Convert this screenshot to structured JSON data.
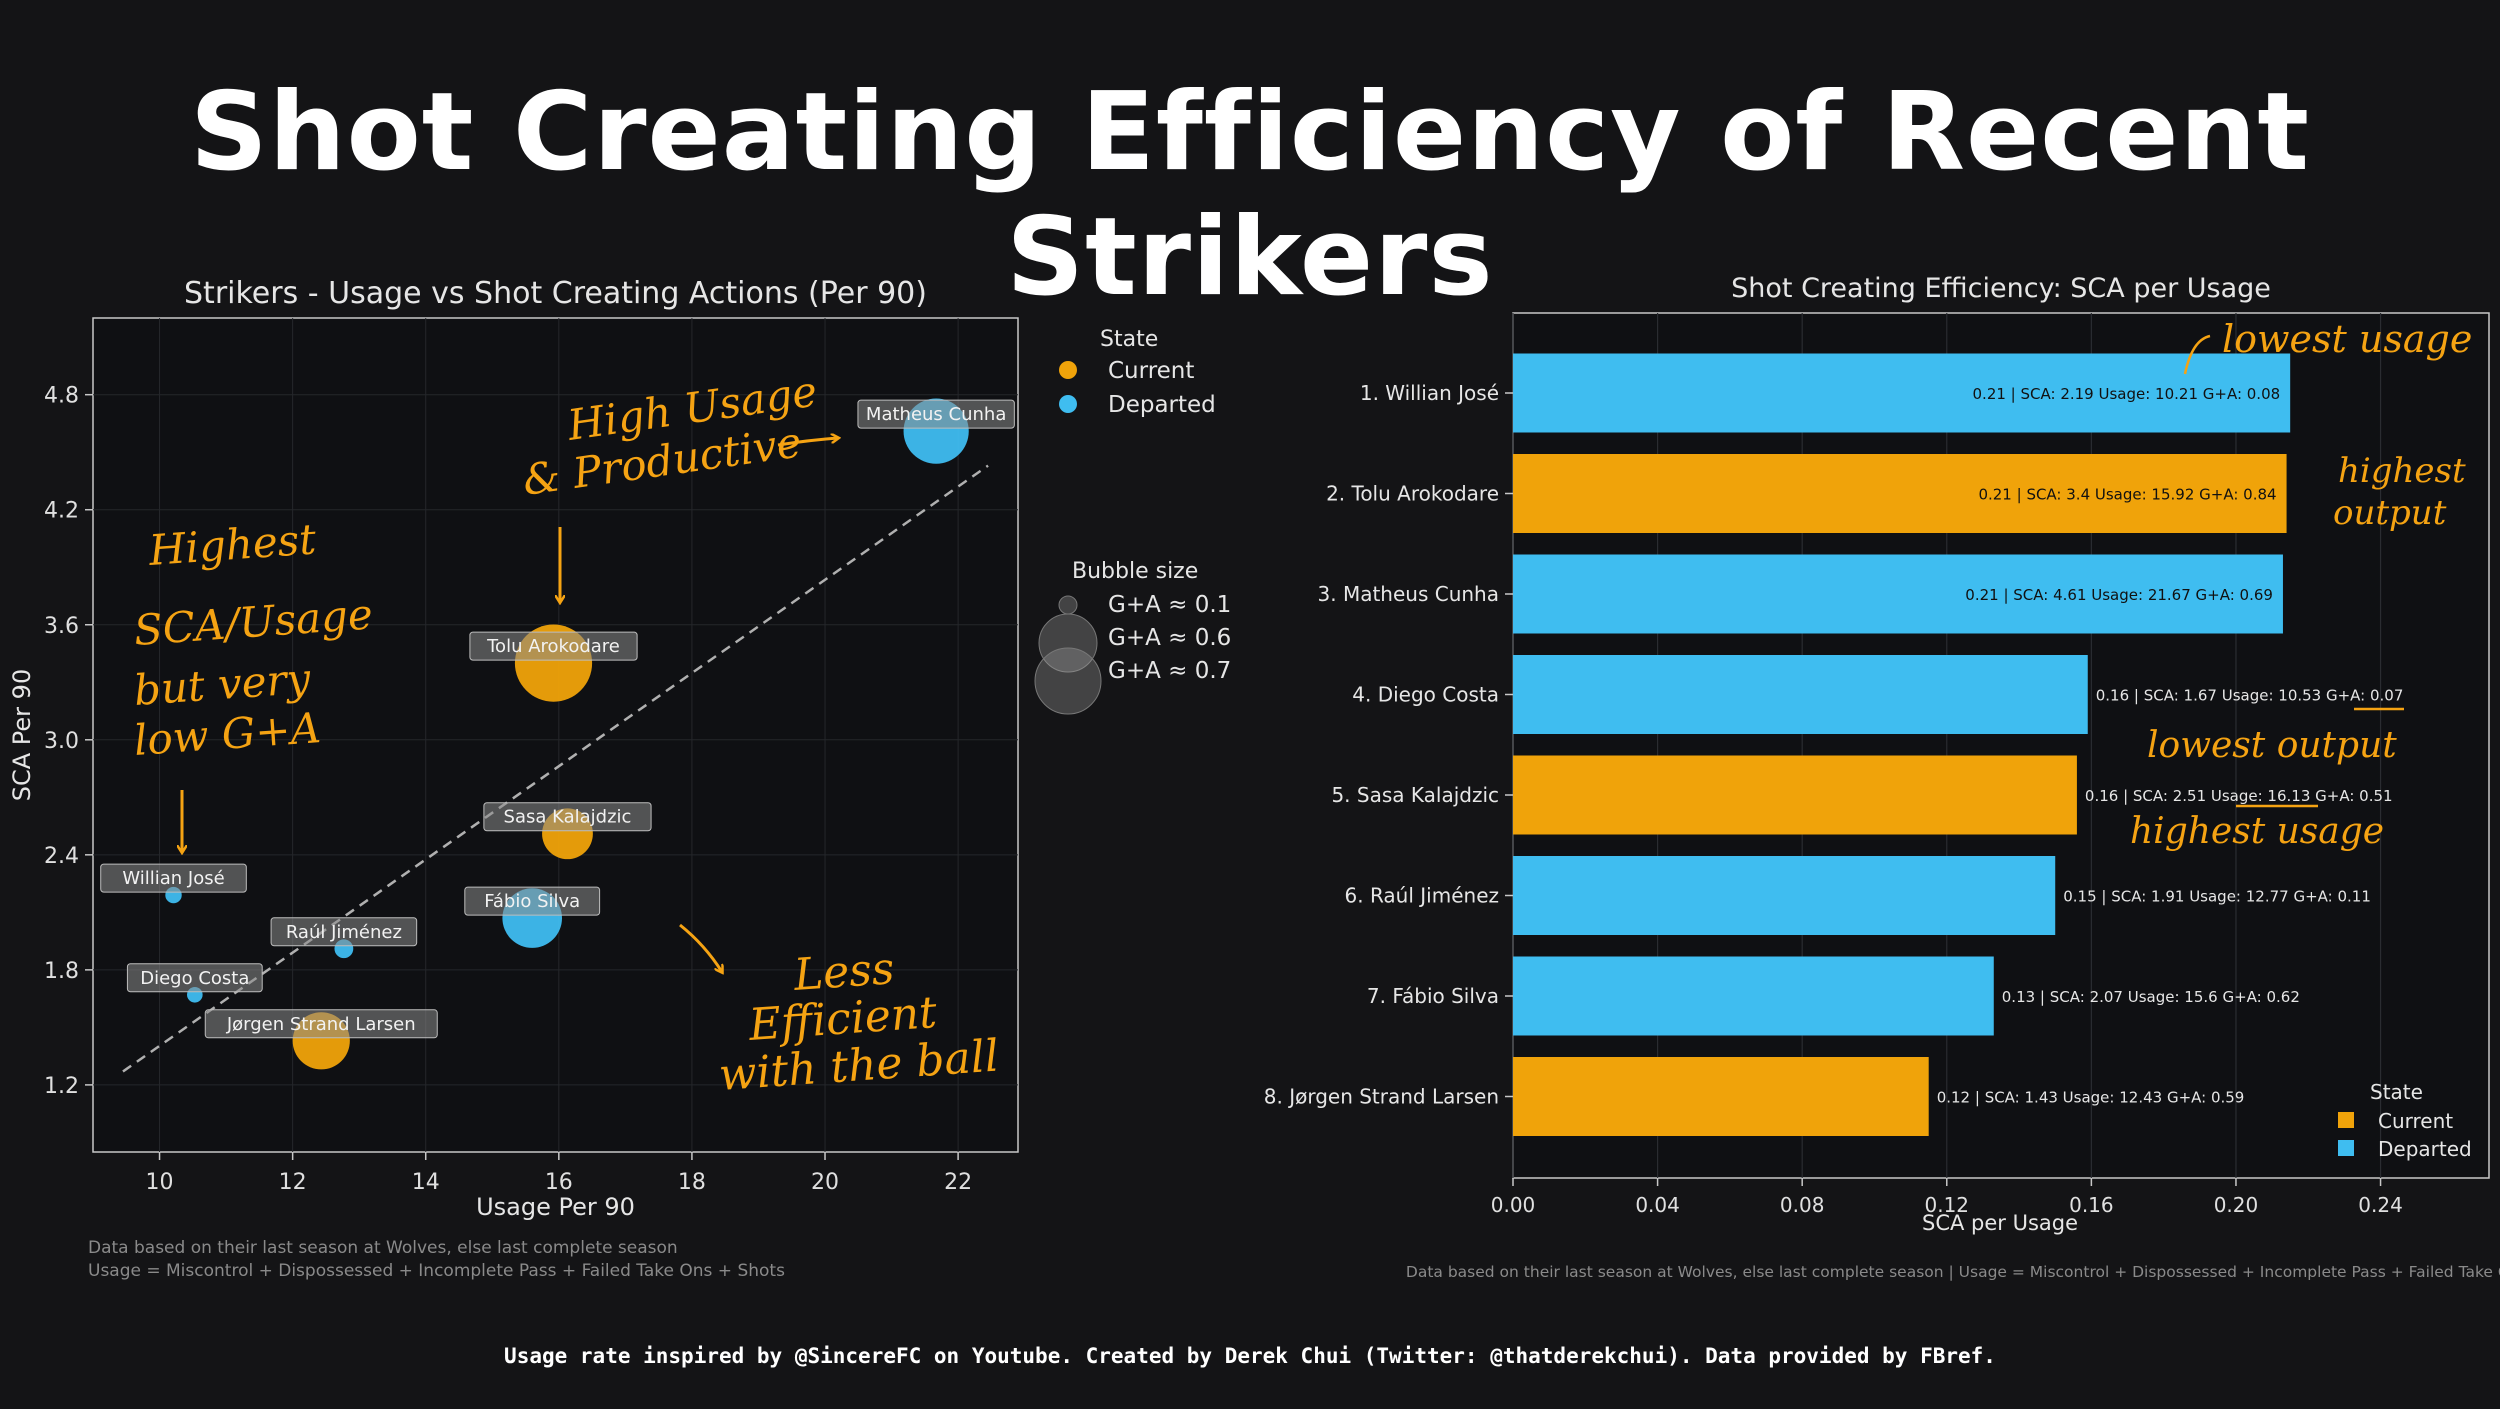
{
  "title": "Shot Creating Efficiency of Recent Strikers",
  "footer": "Usage rate inspired by @SincereFC on Youtube. Created by Derek Chui (Twitter: @thatderekchui). Data provided by FBref.",
  "colors": {
    "current": "#f0a30a",
    "departed": "#3fbdf0",
    "background": "#141416",
    "panel": "#0f1013"
  },
  "chart_data": [
    {
      "type": "scatter",
      "title": "Strikers - Usage vs Shot Creating Actions (Per 90)",
      "xlabel": "Usage Per 90",
      "ylabel": "SCA Per 90",
      "xlim": [
        9.0,
        22.9
      ],
      "ylim": [
        0.85,
        5.2
      ],
      "xticks": [
        "10",
        "12",
        "14",
        "16",
        "18",
        "20",
        "22"
      ],
      "yticks": [
        "1.2",
        "1.8",
        "2.4",
        "3.0",
        "3.6",
        "4.2",
        "4.8"
      ],
      "xtick_values": [
        10,
        12,
        14,
        16,
        18,
        20,
        22
      ],
      "ytick_values": [
        1.2,
        1.8,
        2.4,
        3.0,
        3.6,
        4.2,
        4.8
      ],
      "grid": true,
      "trendline": {
        "x": [
          9.45,
          22.45
        ],
        "y": [
          1.27,
          4.43
        ]
      },
      "legend": {
        "title": "State",
        "entries": [
          "Current",
          "Departed"
        ]
      },
      "size_legend": {
        "title": "Bubble size",
        "entries": [
          "G+A ≈ 0.1",
          "G+A ≈ 0.6",
          "G+A ≈ 0.7"
        ],
        "values": [
          0.1,
          0.6,
          0.7
        ]
      },
      "points": [
        {
          "label": "Matheus Cunha",
          "x": 21.67,
          "y": 4.61,
          "ga": 0.69,
          "state": "Departed"
        },
        {
          "label": "Tolu Arokodare",
          "x": 15.92,
          "y": 3.4,
          "ga": 0.84,
          "state": "Current"
        },
        {
          "label": "Sasa Kalajdzic",
          "x": 16.13,
          "y": 2.51,
          "ga": 0.51,
          "state": "Current"
        },
        {
          "label": "Fábio Silva",
          "x": 15.6,
          "y": 2.07,
          "ga": 0.62,
          "state": "Departed"
        },
        {
          "label": "Raúl Jiménez",
          "x": 12.77,
          "y": 1.91,
          "ga": 0.11,
          "state": "Departed"
        },
        {
          "label": "Willian José",
          "x": 10.21,
          "y": 2.19,
          "ga": 0.08,
          "state": "Departed"
        },
        {
          "label": "Diego Costa",
          "x": 10.53,
          "y": 1.67,
          "ga": 0.07,
          "state": "Departed"
        },
        {
          "label": "Jørgen Strand Larsen",
          "x": 12.43,
          "y": 1.43,
          "ga": 0.59,
          "state": "Current"
        }
      ],
      "annotations": [
        [
          "Highest",
          "SCA/Usage",
          "but very",
          "low G+A"
        ],
        [
          "High Usage",
          "& Productive"
        ],
        [
          "Less",
          "Efficient",
          "with the ball"
        ]
      ],
      "notes": [
        "Data based on their last season at Wolves, else last complete season",
        "Usage = Miscontrol + Dispossessed + Incomplete Pass + Failed Take Ons + Shots"
      ]
    },
    {
      "type": "bar",
      "orientation": "horizontal",
      "title": "Shot Creating Efficiency: SCA per Usage",
      "xlabel": "SCA per Usage",
      "xlim": [
        0,
        0.27
      ],
      "xticks": [
        "0.00",
        "0.04",
        "0.08",
        "0.12",
        "0.16",
        "0.20",
        "0.24"
      ],
      "xtick_values": [
        0,
        0.04,
        0.08,
        0.12,
        0.16,
        0.2,
        0.24
      ],
      "grid": true,
      "legend": {
        "title": "State",
        "entries": [
          "Current",
          "Departed"
        ],
        "position": "lower-right"
      },
      "categories": [
        "1. Willian José",
        "2. Tolu Arokodare",
        "3. Matheus Cunha",
        "4. Diego Costa",
        "5. Sasa Kalajdzic",
        "6. Raúl Jiménez",
        "7. Fábio Silva",
        "8. Jørgen Strand Larsen"
      ],
      "values": [
        0.215,
        0.214,
        0.213,
        0.159,
        0.156,
        0.15,
        0.133,
        0.115
      ],
      "states": [
        "Departed",
        "Current",
        "Departed",
        "Departed",
        "Current",
        "Departed",
        "Departed",
        "Current"
      ],
      "data_labels": [
        "0.21   |   SCA: 2.19   Usage: 10.21   G+A: 0.08",
        "0.21   |   SCA: 3.4   Usage: 15.92   G+A: 0.84",
        "0.21   |   SCA: 4.61   Usage: 21.67   G+A: 0.69",
        "0.16   |   SCA: 1.67   Usage: 10.53   G+A: 0.07",
        "0.16   |   SCA: 2.51   Usage: 16.13   G+A: 0.51",
        "0.15   |   SCA: 1.91   Usage: 12.77   G+A: 0.11",
        "0.13   |   SCA: 2.07   Usage: 15.6   G+A: 0.62",
        "0.12   |   SCA: 1.43   Usage: 12.43   G+A: 0.59"
      ],
      "label_inside": [
        true,
        true,
        true,
        false,
        false,
        false,
        false,
        false
      ],
      "annotations": [
        [
          "lowest usage"
        ],
        [
          "highest",
          "output"
        ],
        [
          "lowest output"
        ],
        [
          "highest usage"
        ]
      ],
      "notes": [
        "Data based on their last season at Wolves, else last complete season | Usage = Miscontrol + Dispossessed + Incomplete Pass + Failed Take Ons + Shots"
      ]
    }
  ]
}
